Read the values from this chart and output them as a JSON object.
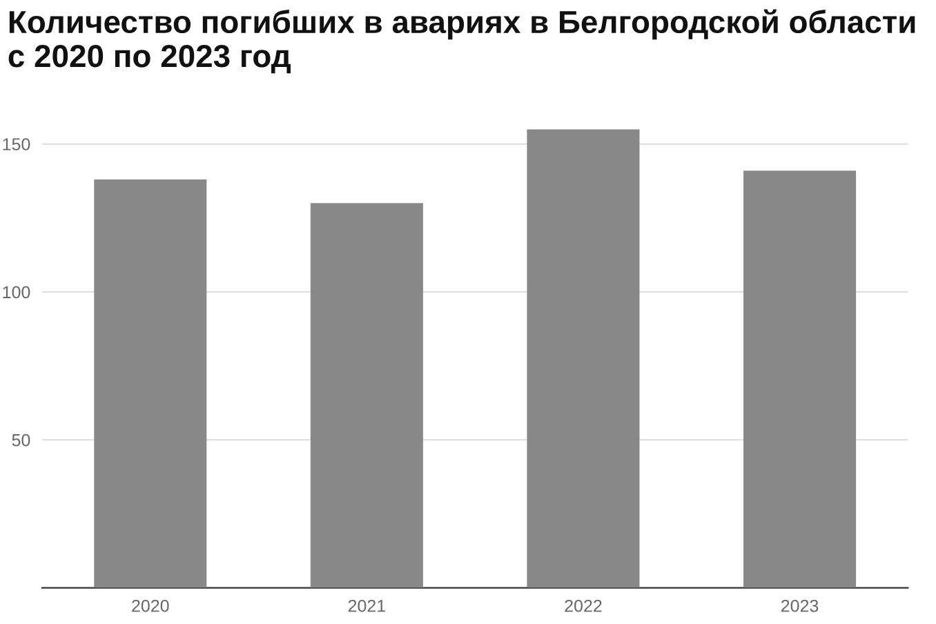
{
  "chart_data": {
    "type": "bar",
    "title": "Количество погибших в авариях в Белгородской области с 2020 по 2023 год",
    "categories": [
      "2020",
      "2021",
      "2022",
      "2023"
    ],
    "values": [
      138,
      130,
      155,
      141
    ],
    "color": "#888888",
    "ylim": [
      0,
      155
    ],
    "yticks": [
      50,
      100,
      150
    ],
    "grid": "y"
  }
}
